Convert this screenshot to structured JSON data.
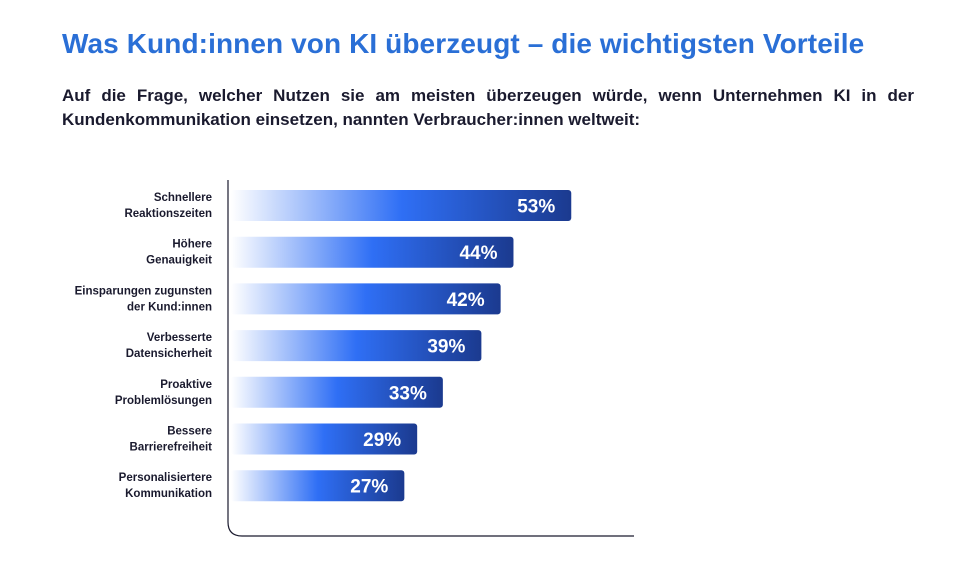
{
  "title": "Was Kund:innen von KI überzeugt – die wichtigsten Vorteile",
  "subtitle": "Auf die Frage, welcher Nutzen sie am meisten überzeugen würde, wenn Unternehmen KI in der Kundenkommunikation einsetzen, nannten Verbraucher:innen weltweit:",
  "colors": {
    "title": "#2a6fd6",
    "bar_light": "#ffffff",
    "bar_mid": "#2f6ff5",
    "bar_dark": "#1b3a8f",
    "axis": "#1a1a2e"
  },
  "chart_data": {
    "type": "bar",
    "orientation": "horizontal",
    "categories": [
      [
        "Schnellere",
        "Reaktionszeiten"
      ],
      [
        "Höhere",
        "Genauigkeit"
      ],
      [
        "Einsparungen zugunsten",
        "der Kund:innen"
      ],
      [
        "Verbesserte",
        "Datensicherheit"
      ],
      [
        "Proaktive",
        "Problemlösungen"
      ],
      [
        "Bessere",
        "Barrierefreiheit"
      ],
      [
        "Personalisiertere",
        "Kommunikation"
      ]
    ],
    "values": [
      53,
      44,
      42,
      39,
      33,
      29,
      27
    ],
    "value_labels": [
      "53%",
      "44%",
      "42%",
      "39%",
      "33%",
      "29%",
      "27%"
    ],
    "xlim": [
      0,
      100
    ],
    "grid": false,
    "legend": "none"
  }
}
